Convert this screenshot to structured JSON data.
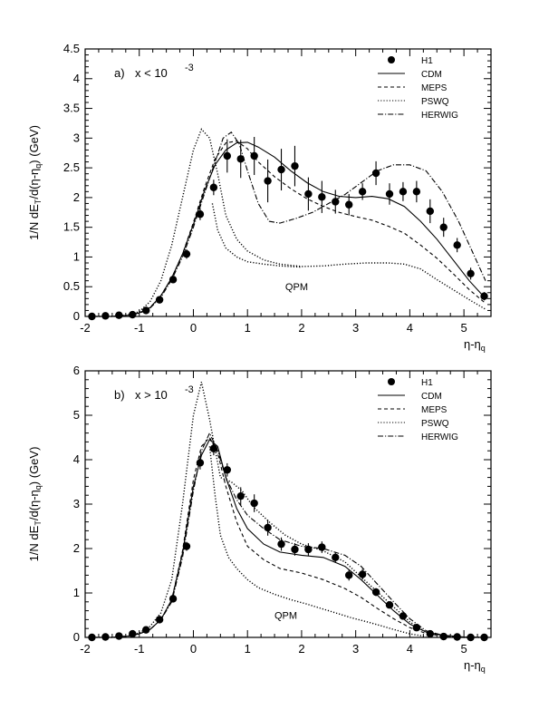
{
  "chart_data": [
    {
      "type": "line",
      "panel_label": "a)",
      "condition": "x < 10",
      "condition_exp": "-3",
      "ylabel": {
        "a": "1/N dE",
        "b": "T",
        "c": "/d(η-η",
        "d": "q",
        "e": ") (GeV)"
      },
      "xlabel": {
        "a": "η-η",
        "b": "q"
      },
      "xlim": [
        -2,
        5.5
      ],
      "ylim": [
        0,
        4.5
      ],
      "xticks": [
        -2,
        -1,
        0,
        1,
        2,
        3,
        4,
        5
      ],
      "yticks": [
        0,
        0.5,
        1,
        1.5,
        2,
        2.5,
        3,
        3.5,
        4,
        4.5
      ],
      "annotation": "QPM",
      "legend_position": "top-right",
      "legend": [
        "H1",
        "CDM",
        "MEPS",
        "PSWQ",
        "HERWIG"
      ],
      "data_points": {
        "name": "H1",
        "x": [
          -1.875,
          -1.625,
          -1.375,
          -1.125,
          -0.875,
          -0.625,
          -0.375,
          -0.125,
          0.125,
          0.375,
          0.625,
          0.875,
          1.125,
          1.375,
          1.625,
          1.875,
          2.125,
          2.375,
          2.625,
          2.875,
          3.125,
          3.375,
          3.625,
          3.875,
          4.125,
          4.375,
          4.625,
          4.875,
          5.125,
          5.375
        ],
        "y": [
          0.0,
          0.01,
          0.02,
          0.03,
          0.1,
          0.28,
          0.62,
          1.05,
          1.72,
          2.17,
          2.7,
          2.65,
          2.7,
          2.28,
          2.47,
          2.53,
          2.06,
          2.01,
          1.93,
          1.88,
          2.1,
          2.41,
          2.06,
          2.1,
          2.1,
          1.77,
          1.5,
          1.2,
          0.72,
          0.34
        ],
        "err": [
          0.02,
          0.02,
          0.02,
          0.02,
          0.03,
          0.05,
          0.06,
          0.08,
          0.1,
          0.13,
          0.28,
          0.32,
          0.32,
          0.36,
          0.35,
          0.34,
          0.28,
          0.27,
          0.2,
          0.18,
          0.14,
          0.2,
          0.18,
          0.16,
          0.18,
          0.2,
          0.16,
          0.12,
          0.1,
          0.07
        ]
      },
      "series": [
        {
          "name": "CDM",
          "style": "solid",
          "x": [
            -1.9,
            -1.5,
            -1.2,
            -1,
            -0.8,
            -0.6,
            -0.4,
            -0.2,
            0,
            0.2,
            0.4,
            0.6,
            0.8,
            1.0,
            1.2,
            1.5,
            1.8,
            2.1,
            2.4,
            2.7,
            3.0,
            3.3,
            3.6,
            3.9,
            4.2,
            4.5,
            4.8,
            5.1,
            5.4
          ],
          "y": [
            0.0,
            0.0,
            0.02,
            0.06,
            0.15,
            0.35,
            0.65,
            1.05,
            1.55,
            2.1,
            2.55,
            2.8,
            2.92,
            2.93,
            2.85,
            2.68,
            2.45,
            2.25,
            2.1,
            2.02,
            2.0,
            2.02,
            1.98,
            1.85,
            1.6,
            1.3,
            0.95,
            0.6,
            0.3
          ]
        },
        {
          "name": "MEPS",
          "style": "dashed",
          "x": [
            -1.9,
            -1.5,
            -1.2,
            -1,
            -0.8,
            -0.6,
            -0.4,
            -0.2,
            0,
            0.2,
            0.4,
            0.6,
            0.8,
            1.0,
            1.2,
            1.5,
            1.8,
            2.1,
            2.4,
            2.7,
            3.0,
            3.3,
            3.6,
            3.9,
            4.2,
            4.5,
            4.8,
            5.1,
            5.4
          ],
          "y": [
            0.0,
            0.0,
            0.02,
            0.06,
            0.15,
            0.35,
            0.65,
            1.05,
            1.58,
            2.15,
            2.65,
            2.92,
            2.95,
            2.82,
            2.6,
            2.35,
            2.15,
            1.98,
            1.85,
            1.75,
            1.68,
            1.62,
            1.52,
            1.4,
            1.2,
            0.98,
            0.72,
            0.45,
            0.22
          ]
        },
        {
          "name": "PSWQ",
          "style": "dotted",
          "x": [
            -1.9,
            -1.5,
            -1.2,
            -1,
            -0.8,
            -0.6,
            -0.4,
            -0.2,
            0,
            0.15,
            0.3,
            0.45,
            0.6,
            0.8,
            1.0,
            1.3,
            1.6,
            2.0,
            2.4,
            2.8,
            3.2,
            3.6,
            3.9,
            4.2,
            4.5,
            4.8,
            5.1,
            5.4
          ],
          "y": [
            0.0,
            0.0,
            0.03,
            0.08,
            0.25,
            0.6,
            1.2,
            2.0,
            2.8,
            3.15,
            3.0,
            2.4,
            1.7,
            1.3,
            1.1,
            0.95,
            0.88,
            0.84,
            0.85,
            0.88,
            0.9,
            0.9,
            0.88,
            0.8,
            0.62,
            0.45,
            0.28,
            0.12
          ]
        },
        {
          "name": "HERWIG",
          "style": "dashdot",
          "x": [
            -1.9,
            -1.5,
            -1.2,
            -1,
            -0.8,
            -0.6,
            -0.4,
            -0.2,
            0,
            0.2,
            0.4,
            0.55,
            0.7,
            0.85,
            1.0,
            1.2,
            1.4,
            1.6,
            1.9,
            2.2,
            2.5,
            2.8,
            3.1,
            3.4,
            3.7,
            4.0,
            4.3,
            4.6,
            4.9,
            5.2,
            5.4
          ],
          "y": [
            0.0,
            0.0,
            0.02,
            0.05,
            0.14,
            0.32,
            0.62,
            1.0,
            1.5,
            2.05,
            2.6,
            3.0,
            3.1,
            2.9,
            2.45,
            1.9,
            1.6,
            1.57,
            1.65,
            1.75,
            1.9,
            2.05,
            2.25,
            2.45,
            2.55,
            2.55,
            2.45,
            2.1,
            1.6,
            1.0,
            0.6
          ]
        },
        {
          "name": "QPM",
          "style": "dotted",
          "x": [
            0.35,
            0.45,
            0.6,
            0.8,
            1.0,
            1.3,
            1.6,
            2.0
          ],
          "y": [
            1.9,
            1.45,
            1.15,
            1.0,
            0.92,
            0.88,
            0.85,
            0.83
          ]
        }
      ]
    },
    {
      "type": "line",
      "panel_label": "b)",
      "condition": "x > 10",
      "condition_exp": "-3",
      "ylabel": {
        "a": "1/N dE",
        "b": "T",
        "c": "/d(η-η",
        "d": "q",
        "e": ") (GeV)"
      },
      "xlabel": {
        "a": "η-η",
        "b": "q"
      },
      "xlim": [
        -2,
        5.5
      ],
      "ylim": [
        0,
        6
      ],
      "xticks": [
        -2,
        -1,
        0,
        1,
        2,
        3,
        4,
        5
      ],
      "yticks": [
        0,
        1,
        2,
        3,
        4,
        5,
        6
      ],
      "annotation": "QPM",
      "legend_position": "top-right",
      "legend": [
        "H1",
        "CDM",
        "MEPS",
        "PSWQ",
        "HERWIG"
      ],
      "data_points": {
        "name": "H1",
        "x": [
          -1.875,
          -1.625,
          -1.375,
          -1.125,
          -0.875,
          -0.625,
          -0.375,
          -0.125,
          0.125,
          0.375,
          0.625,
          0.875,
          1.125,
          1.375,
          1.625,
          1.875,
          2.125,
          2.375,
          2.625,
          2.875,
          3.125,
          3.375,
          3.625,
          3.875,
          4.125,
          4.375,
          4.625,
          4.875,
          5.125,
          5.375
        ],
        "y": [
          0.0,
          0.01,
          0.03,
          0.08,
          0.17,
          0.4,
          0.87,
          2.05,
          3.93,
          4.25,
          3.77,
          3.18,
          3.02,
          2.47,
          2.1,
          1.98,
          1.98,
          2.03,
          1.8,
          1.4,
          1.42,
          1.02,
          0.73,
          0.48,
          0.22,
          0.08,
          0.02,
          0.01,
          0.0,
          0.0
        ],
        "err": [
          0.02,
          0.02,
          0.02,
          0.03,
          0.04,
          0.05,
          0.07,
          0.1,
          0.15,
          0.15,
          0.15,
          0.2,
          0.2,
          0.18,
          0.15,
          0.14,
          0.14,
          0.13,
          0.12,
          0.12,
          0.12,
          0.09,
          0.07,
          0.06,
          0.04,
          0.03,
          0.02,
          0.02,
          0.02,
          0.02
        ]
      },
      "series": [
        {
          "name": "CDM",
          "style": "solid",
          "x": [
            -1.9,
            -1.5,
            -1.2,
            -1,
            -0.8,
            -0.6,
            -0.4,
            -0.2,
            0,
            0.15,
            0.3,
            0.45,
            0.6,
            0.8,
            1.0,
            1.3,
            1.6,
            2.0,
            2.4,
            2.8,
            3.1,
            3.4,
            3.7,
            4.0,
            4.3,
            4.6,
            5.0,
            5.4
          ],
          "y": [
            0.0,
            0.0,
            0.03,
            0.08,
            0.18,
            0.4,
            0.85,
            1.9,
            3.4,
            4.1,
            4.45,
            4.3,
            3.6,
            2.9,
            2.45,
            2.1,
            1.92,
            1.85,
            1.8,
            1.6,
            1.3,
            0.95,
            0.6,
            0.3,
            0.12,
            0.05,
            0.01,
            0.0
          ]
        },
        {
          "name": "MEPS",
          "style": "dashed",
          "x": [
            -1.9,
            -1.5,
            -1.2,
            -1,
            -0.8,
            -0.6,
            -0.4,
            -0.2,
            0,
            0.15,
            0.3,
            0.45,
            0.6,
            0.8,
            1.0,
            1.3,
            1.6,
            2.0,
            2.4,
            2.8,
            3.1,
            3.4,
            3.7,
            4.0,
            4.3,
            4.6,
            5.0,
            5.4
          ],
          "y": [
            0.0,
            0.0,
            0.03,
            0.08,
            0.18,
            0.4,
            0.85,
            1.95,
            3.55,
            4.3,
            4.5,
            4.15,
            3.4,
            2.6,
            2.05,
            1.75,
            1.55,
            1.45,
            1.3,
            1.1,
            0.9,
            0.65,
            0.42,
            0.22,
            0.09,
            0.03,
            0.0,
            0.0
          ]
        },
        {
          "name": "PSWQ",
          "style": "dotted",
          "x": [
            -1.9,
            -1.5,
            -1.2,
            -1,
            -0.8,
            -0.6,
            -0.4,
            -0.2,
            0,
            0.15,
            0.3,
            0.5,
            0.7,
            0.9,
            1.1,
            1.4,
            1.7,
            2.0,
            2.4,
            2.8,
            3.2,
            3.6,
            4.0,
            4.3,
            4.6,
            5.0,
            5.4
          ],
          "y": [
            0.0,
            0.0,
            0.03,
            0.1,
            0.25,
            0.55,
            1.3,
            3.0,
            5.0,
            5.75,
            4.9,
            3.6,
            3.5,
            3.3,
            2.95,
            2.6,
            2.3,
            2.1,
            1.95,
            1.7,
            1.25,
            0.8,
            0.35,
            0.12,
            0.04,
            0.0,
            0.0
          ]
        },
        {
          "name": "HERWIG",
          "style": "dashdot",
          "x": [
            -1.9,
            -1.5,
            -1.2,
            -1,
            -0.8,
            -0.6,
            -0.4,
            -0.2,
            0,
            0.15,
            0.3,
            0.45,
            0.6,
            0.8,
            1.0,
            1.3,
            1.6,
            2.0,
            2.4,
            2.8,
            3.1,
            3.4,
            3.7,
            4.0,
            4.3,
            4.6,
            5.0,
            5.4
          ],
          "y": [
            0.0,
            0.0,
            0.03,
            0.08,
            0.18,
            0.4,
            0.8,
            1.8,
            3.3,
            4.2,
            4.6,
            4.2,
            3.6,
            3.1,
            2.75,
            2.45,
            2.2,
            2.05,
            2.0,
            1.85,
            1.6,
            1.2,
            0.8,
            0.42,
            0.15,
            0.05,
            0.0,
            0.0
          ]
        },
        {
          "name": "QPM",
          "style": "dotted",
          "x": [
            0.3,
            0.4,
            0.5,
            0.65,
            0.8,
            1.0,
            1.2,
            1.5,
            1.8,
            2.1,
            2.5,
            2.9,
            3.3,
            3.7,
            4.0,
            4.3
          ],
          "y": [
            4.3,
            3.2,
            2.3,
            1.8,
            1.55,
            1.3,
            1.12,
            0.97,
            0.85,
            0.75,
            0.6,
            0.45,
            0.32,
            0.18,
            0.08,
            0.02
          ]
        }
      ]
    }
  ]
}
